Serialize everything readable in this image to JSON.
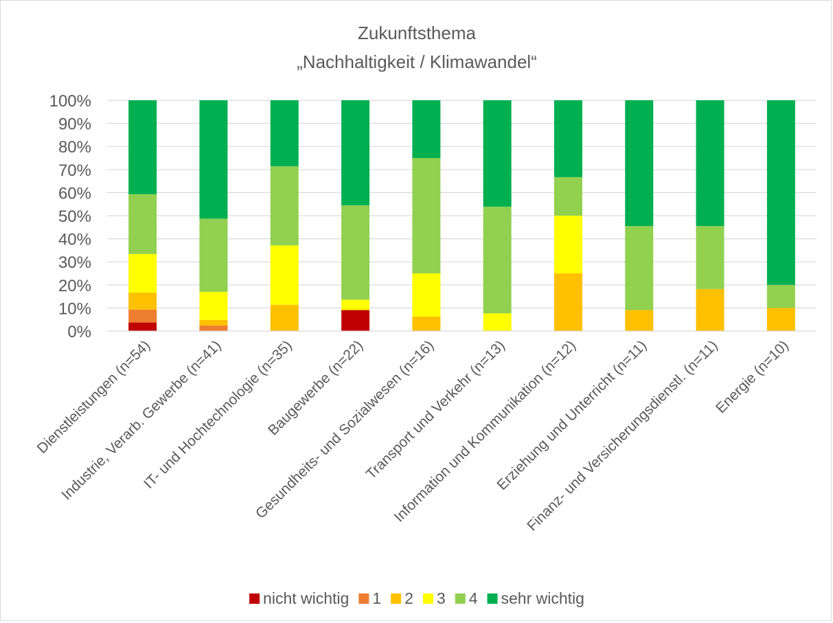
{
  "chart_data": {
    "type": "bar",
    "stacked": true,
    "title_lines": [
      "Zukunftsthema",
      "„Nachhaltigkeit / Klimawandel“"
    ],
    "xlabel": "",
    "ylabel": "",
    "ylim": [
      0,
      100
    ],
    "y_ticks": [
      "0%",
      "10%",
      "20%",
      "30%",
      "40%",
      "50%",
      "60%",
      "70%",
      "80%",
      "90%",
      "100%"
    ],
    "grid": true,
    "legend_position": "bottom",
    "categories": [
      "Dienstleistungen (n=54)",
      "Industrie, Verarb. Gewerbe (n=41)",
      "IT- und Hochtechnologie (n=35)",
      "Baugewerbe (n=22)",
      "Gesundheits- und Sozialwesen (n=16)",
      "Transport und Verkehr (n=13)",
      "Information und Kommunikation (n=12)",
      "Erziehung und Unterricht (n=11)",
      "Finanz- und Versicherungsdienstl. (n=11)",
      "Energie (n=10)"
    ],
    "series": [
      {
        "name": "nicht wichtig",
        "color": "#c00000",
        "values": [
          3.7,
          0,
          0,
          9.1,
          0,
          0,
          0,
          0,
          0,
          0
        ]
      },
      {
        "name": "1",
        "color": "#ed7d31",
        "values": [
          5.6,
          2.4,
          0,
          0,
          0,
          0,
          0,
          0,
          0,
          0
        ]
      },
      {
        "name": "2",
        "color": "#ffc000",
        "values": [
          7.4,
          2.4,
          11.4,
          0,
          6.25,
          0,
          25.0,
          9.1,
          18.2,
          10.0
        ]
      },
      {
        "name": "3",
        "color": "#ffff00",
        "values": [
          16.7,
          12.2,
          25.7,
          4.5,
          18.75,
          7.7,
          25.0,
          0,
          0,
          0
        ]
      },
      {
        "name": "4",
        "color": "#92d050",
        "values": [
          25.9,
          31.7,
          34.3,
          40.9,
          50.0,
          46.2,
          16.7,
          36.4,
          27.3,
          10.0
        ]
      },
      {
        "name": "sehr wichtig",
        "color": "#00b050",
        "values": [
          40.7,
          51.3,
          28.6,
          45.5,
          25.0,
          46.1,
          33.3,
          54.5,
          54.5,
          80.0
        ]
      }
    ]
  }
}
